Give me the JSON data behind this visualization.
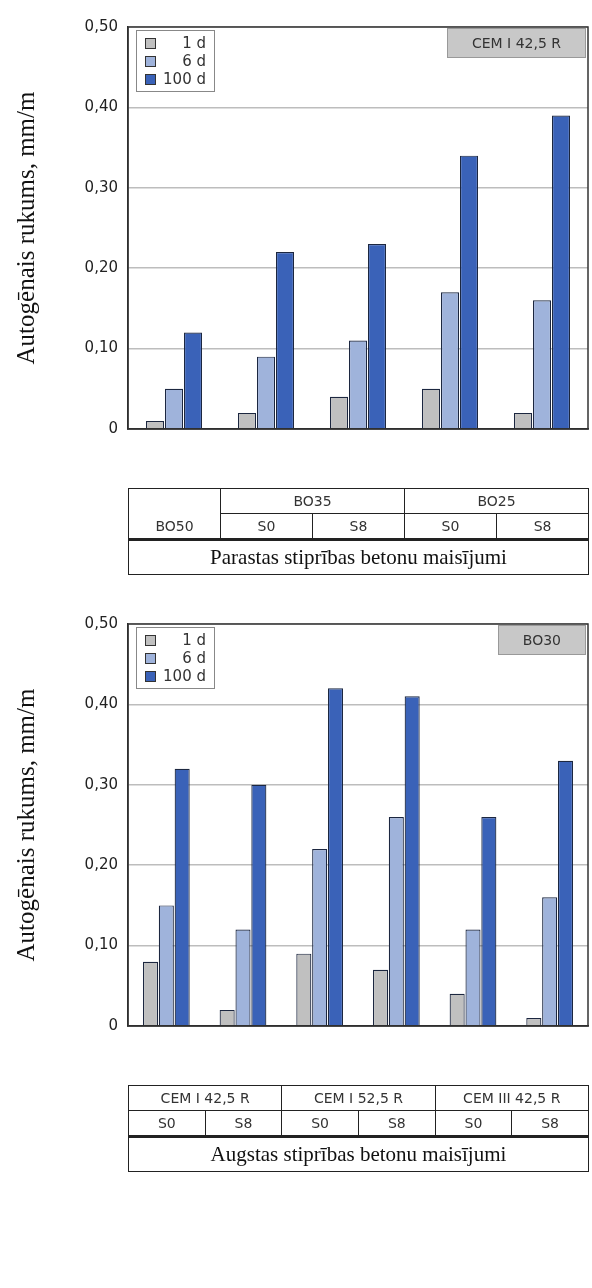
{
  "chart_data": [
    {
      "type": "bar",
      "categories": [
        "BO50",
        "S0",
        "S8",
        "S0",
        "S8"
      ],
      "xlabel": "Parastas stiprības betonu maisījumi",
      "ylabel": "Autogēnais rukums, mm/m",
      "annotations": [
        "CEM I 42,5 R",
        "BO35",
        "BO25"
      ],
      "series": [
        {
          "name": "1 d",
          "color": "#c0c0c0",
          "values": [
            0.01,
            0.02,
            0.04,
            0.05,
            0.02
          ]
        },
        {
          "name": "6 d",
          "color": "#9fb3db",
          "values": [
            0.05,
            0.09,
            0.11,
            0.17,
            0.16
          ]
        },
        {
          "name": "100 d",
          "color": "#3a62b8",
          "values": [
            0.12,
            0.22,
            0.23,
            0.34,
            0.39
          ]
        }
      ],
      "ylim": [
        0,
        0.5
      ],
      "yticks": [
        {
          "value": 0,
          "label": "0"
        },
        {
          "value": 0.1,
          "label": "0,10"
        },
        {
          "value": 0.2,
          "label": "0,20"
        },
        {
          "value": 0.3,
          "label": "0,30"
        },
        {
          "value": 0.4,
          "label": "0,40"
        },
        {
          "value": 0.5,
          "label": "0,50"
        }
      ],
      "grid": "y",
      "legend": "top left"
    },
    {
      "type": "bar",
      "categories": [
        "S0",
        "S8",
        "S0",
        "S8",
        "S0",
        "S8"
      ],
      "xlabel": "Augstas stiprības betonu maisījumi",
      "ylabel": "Autogēnais rukums, mm/m",
      "annotations": [
        "BO30",
        "CEM I 42,5 R",
        "CEM I 52,5 R",
        "CEM III 42,5 R"
      ],
      "series": [
        {
          "name": "1 d",
          "color": "#c0c0c0",
          "values": [
            0.08,
            0.02,
            0.09,
            0.07,
            0.04,
            0.01
          ]
        },
        {
          "name": "6 d",
          "color": "#9fb3db",
          "values": [
            0.15,
            0.12,
            0.22,
            0.26,
            0.12,
            0.16
          ]
        },
        {
          "name": "100 d",
          "color": "#3a62b8",
          "values": [
            0.32,
            0.3,
            0.42,
            0.41,
            0.26,
            0.33
          ]
        }
      ],
      "ylim": [
        0,
        0.5
      ],
      "yticks": [
        {
          "value": 0,
          "label": "0"
        },
        {
          "value": 0.1,
          "label": "0,10"
        },
        {
          "value": 0.2,
          "label": "0,20"
        },
        {
          "value": 0.3,
          "label": "0,30"
        },
        {
          "value": 0.4,
          "label": "0,40"
        },
        {
          "value": 0.5,
          "label": "0,50"
        }
      ],
      "grid": "y",
      "legend": "top left"
    }
  ]
}
